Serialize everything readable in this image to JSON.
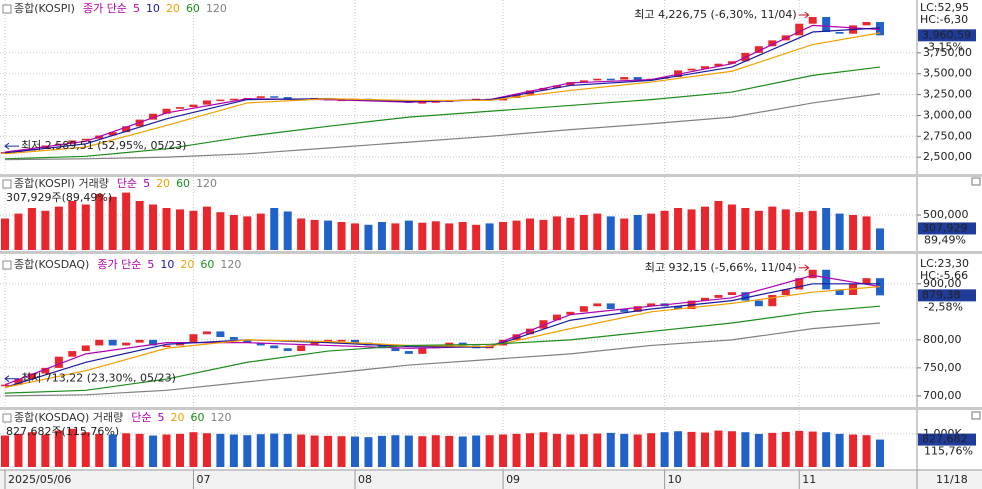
{
  "x_axis": {
    "xlim": [
      0,
      65
    ],
    "xticks": [
      {
        "value": 0,
        "label": "2025/05/06"
      },
      {
        "value": 14,
        "label": "07"
      },
      {
        "value": 26,
        "label": "08"
      },
      {
        "value": 37,
        "label": "09"
      },
      {
        "value": 49,
        "label": "10"
      },
      {
        "value": 59,
        "label": "11"
      }
    ],
    "end_label": "11/18"
  },
  "chart_data": [
    {
      "type": "candlestick",
      "title": "종합(KOSPI)",
      "indicator_label": "종가 단순",
      "up_color": "#e8262d",
      "down_color": "#2062c8",
      "ylim": [
        2310,
        4360
      ],
      "yticks": [
        {
          "value": 2500,
          "label": "2,500,00"
        },
        {
          "value": 2750,
          "label": "2,750,00"
        },
        {
          "value": 3000,
          "label": "3,000,00"
        },
        {
          "value": 3250,
          "label": "3,250,00"
        },
        {
          "value": 3500,
          "label": "3,500,00"
        },
        {
          "value": 3750,
          "label": "3,750,00"
        }
      ],
      "values": [
        2560,
        2580,
        2600,
        2640,
        2660,
        2700,
        2720,
        2760,
        2800,
        2870,
        2950,
        3020,
        3080,
        3100,
        3130,
        3180,
        3190,
        3200,
        3210,
        3230,
        3220,
        3190,
        3200,
        3210,
        3180,
        3190,
        3200,
        3190,
        3170,
        3180,
        3150,
        3160,
        3170,
        3180,
        3190,
        3200,
        3180,
        3210,
        3250,
        3300,
        3330,
        3360,
        3400,
        3420,
        3440,
        3430,
        3460,
        3420,
        3440,
        3460,
        3540,
        3560,
        3590,
        3620,
        3650,
        3750,
        3830,
        3900,
        3960,
        4100,
        4180,
        4000,
        3980,
        4080,
        4120,
        3960.59
      ],
      "ma_x": [
        0,
        6,
        12,
        18,
        24,
        30,
        36,
        42,
        48,
        54,
        60,
        65
      ],
      "series": [
        {
          "name": "5",
          "color": "#b000b0",
          "values": [
            2560,
            2690,
            3030,
            3200,
            3190,
            3160,
            3190,
            3390,
            3430,
            3620,
            4080,
            4030
          ]
        },
        {
          "name": "10",
          "color": "#1a1aa0",
          "values": [
            2550,
            2660,
            2960,
            3190,
            3200,
            3170,
            3185,
            3360,
            3420,
            3580,
            4000,
            4050
          ]
        },
        {
          "name": "20",
          "color": "#f0a000",
          "values": [
            2540,
            2620,
            2880,
            3150,
            3200,
            3180,
            3180,
            3300,
            3400,
            3530,
            3850,
            3990
          ]
        },
        {
          "name": "60",
          "color": "#1c8c1c",
          "values": [
            2480,
            2510,
            2600,
            2750,
            2870,
            2980,
            3050,
            3120,
            3190,
            3280,
            3480,
            3580
          ]
        },
        {
          "name": "120",
          "color": "#808080",
          "values": [
            2470,
            2480,
            2500,
            2540,
            2610,
            2680,
            2750,
            2830,
            2900,
            2980,
            3150,
            3260
          ]
        }
      ],
      "high_label": "최고 4,226,75 (-6,30%, 11/04)",
      "low_label": "최저 2,589,51 (52,95%, 05/23)",
      "lc_label": "LC:52,95",
      "hc_label": "HC:-6,30",
      "last_label": "3,960,59",
      "change_label": "-3,15%"
    },
    {
      "type": "bar",
      "title": "종합(KOSPI) 거래량",
      "indicator_label": "단순",
      "legend": [
        {
          "name": "5",
          "color": "#b000b0"
        },
        {
          "name": "20",
          "color": "#f0a000"
        },
        {
          "name": "60",
          "color": "#1c8c1c"
        },
        {
          "name": "120",
          "color": "#808080"
        }
      ],
      "summary": "307,929주(89,49%)",
      "ylim": [
        0,
        1000000
      ],
      "yticks": [
        {
          "value": 500000,
          "label": "500,000"
        }
      ],
      "values": [
        450000,
        520000,
        600000,
        560000,
        620000,
        700000,
        650000,
        800000,
        760000,
        820000,
        700000,
        650000,
        600000,
        580000,
        560000,
        620000,
        540000,
        500000,
        480000,
        520000,
        600000,
        550000,
        450000,
        430000,
        420000,
        400000,
        380000,
        360000,
        400000,
        380000,
        420000,
        390000,
        410000,
        380000,
        400000,
        360000,
        380000,
        400000,
        420000,
        450000,
        430000,
        480000,
        460000,
        500000,
        520000,
        480000,
        450000,
        500000,
        520000,
        560000,
        600000,
        580000,
        620000,
        700000,
        650000,
        600000,
        560000,
        620000,
        580000,
        540000,
        560000,
        600000,
        520000,
        500000,
        480000,
        307929
      ],
      "last_label": "307,929",
      "change_label": "89,49%"
    },
    {
      "type": "candlestick",
      "title": "종합(KOSDAQ)",
      "indicator_label": "종가 단순",
      "up_color": "#e8262d",
      "down_color": "#2062c8",
      "ylim": [
        682,
        946
      ],
      "yticks": [
        {
          "value": 700,
          "label": "700,00"
        },
        {
          "value": 750,
          "label": "750,00"
        },
        {
          "value": 800,
          "label": "800,00"
        },
        {
          "value": 900,
          "label": "900,00"
        }
      ],
      "values": [
        720,
        730,
        740,
        750,
        770,
        780,
        790,
        800,
        790,
        795,
        800,
        790,
        790,
        795,
        810,
        815,
        805,
        800,
        795,
        790,
        785,
        780,
        790,
        795,
        800,
        800,
        795,
        790,
        785,
        780,
        775,
        785,
        790,
        795,
        790,
        785,
        790,
        800,
        810,
        820,
        835,
        845,
        850,
        860,
        865,
        855,
        850,
        860,
        865,
        860,
        855,
        870,
        875,
        880,
        885,
        870,
        860,
        880,
        890,
        910,
        925,
        890,
        880,
        900,
        910,
        879.38
      ],
      "ma_x": [
        0,
        6,
        12,
        18,
        24,
        30,
        36,
        42,
        48,
        54,
        60,
        65
      ],
      "series": [
        {
          "name": "5",
          "color": "#b000b0",
          "values": [
            720,
            775,
            795,
            795,
            790,
            785,
            788,
            845,
            860,
            875,
            915,
            895
          ]
        },
        {
          "name": "10",
          "color": "#1a1aa0",
          "values": [
            715,
            760,
            792,
            800,
            795,
            788,
            787,
            835,
            855,
            870,
            900,
            900
          ]
        },
        {
          "name": "20",
          "color": "#f0a000",
          "values": [
            715,
            745,
            785,
            800,
            797,
            790,
            788,
            820,
            850,
            865,
            885,
            895
          ]
        },
        {
          "name": "60",
          "color": "#1c8c1c",
          "values": [
            705,
            710,
            730,
            760,
            780,
            790,
            792,
            800,
            815,
            830,
            850,
            860
          ]
        },
        {
          "name": "120",
          "color": "#808080",
          "values": [
            700,
            702,
            710,
            725,
            740,
            755,
            765,
            775,
            790,
            800,
            820,
            830
          ]
        }
      ],
      "high_label": "최고 932,15 (-5,66%, 11/04)",
      "low_label": "최저 713,22 (23,30%, 05/23)",
      "lc_label": "LC:23,30",
      "hc_label": "HC:-5,66",
      "last_label": "879,38",
      "change_label": "-2,58%"
    },
    {
      "type": "bar",
      "title": "종합(KOSDAQ) 거래량",
      "indicator_label": "단순",
      "legend": [
        {
          "name": "5",
          "color": "#b000b0"
        },
        {
          "name": "20",
          "color": "#f0a000"
        },
        {
          "name": "60",
          "color": "#1c8c1c"
        },
        {
          "name": "120",
          "color": "#808080"
        }
      ],
      "summary": "827,682주(115,76%)",
      "ylim": [
        0,
        1600000
      ],
      "yticks": [
        {
          "value": 1000000,
          "label": "1,000K"
        }
      ],
      "values": [
        950000,
        1000000,
        1050000,
        980000,
        1100000,
        1150000,
        1050000,
        1000000,
        980000,
        1020000,
        1000000,
        950000,
        980000,
        1000000,
        1050000,
        1020000,
        1000000,
        980000,
        960000,
        990000,
        1010000,
        1000000,
        980000,
        950000,
        940000,
        930000,
        920000,
        900000,
        940000,
        960000,
        950000,
        930000,
        960000,
        940000,
        920000,
        950000,
        960000,
        980000,
        1000000,
        1020000,
        1050000,
        1000000,
        980000,
        990000,
        1010000,
        1030000,
        1000000,
        980000,
        1020000,
        1050000,
        1080000,
        1060000,
        1040000,
        1100000,
        1080000,
        1050000,
        1000000,
        1030000,
        1060000,
        1090000,
        1070000,
        1050000,
        1000000,
        980000,
        960000,
        827682
      ],
      "last_label": "827,682",
      "change_label": "115,76%"
    }
  ]
}
